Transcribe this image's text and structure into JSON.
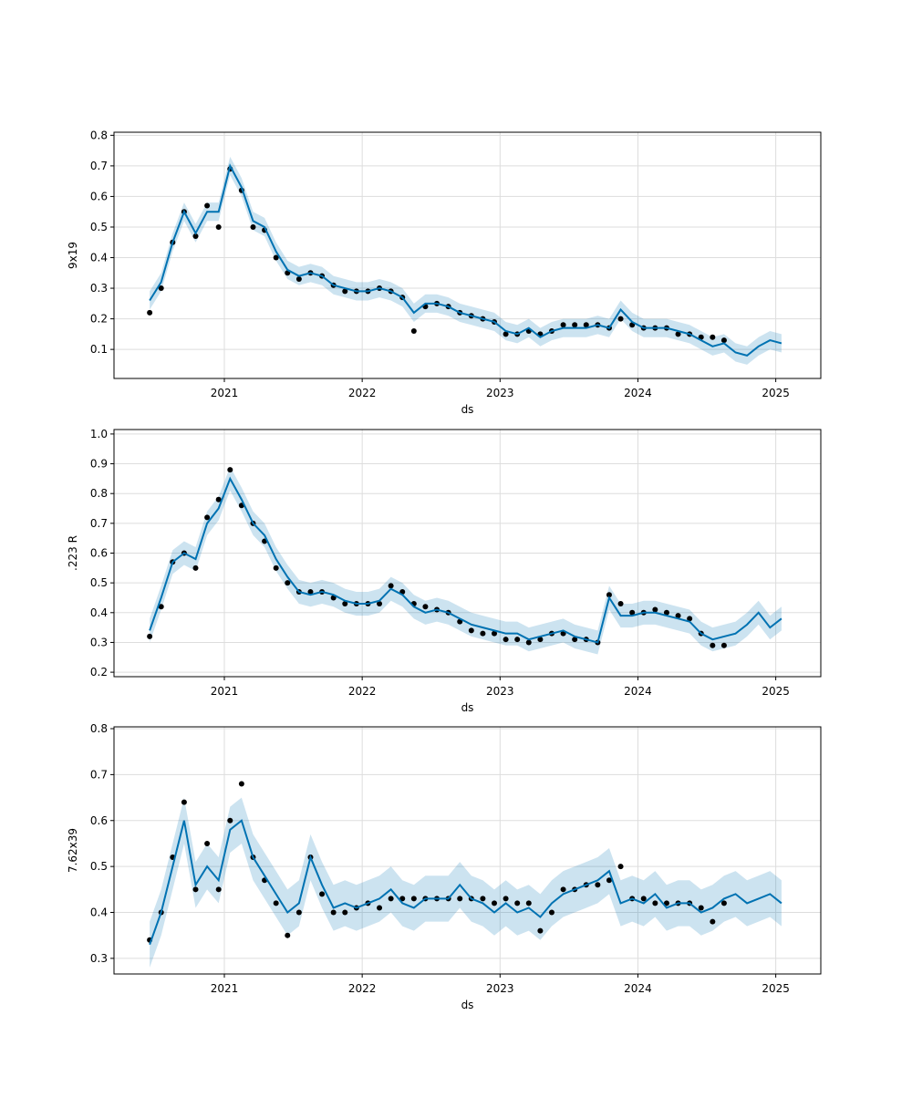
{
  "colors": {
    "forecast_line": "#0072B2",
    "interval_fill": "#0072B2",
    "observed_points": "#000000",
    "grid": "#dddddd"
  },
  "chart_data": [
    {
      "type": "line",
      "ylabel": "9x19",
      "xlabel": "ds",
      "xticks": [
        "2021",
        "2022",
        "2023",
        "2024",
        "2025"
      ],
      "yticks": [
        "0.1",
        "0.2",
        "0.3",
        "0.4",
        "0.5",
        "0.6",
        "0.7",
        "0.8"
      ],
      "xlim": [
        "2020-03-13",
        "2025-04-29"
      ],
      "ylim": [
        0.005,
        0.81
      ],
      "grid": true,
      "x": [
        "2020-06",
        "2020-07",
        "2020-08",
        "2020-09",
        "2020-10",
        "2020-11",
        "2020-12",
        "2021-01",
        "2021-02",
        "2021-03",
        "2021-04",
        "2021-05",
        "2021-06",
        "2021-07",
        "2021-08",
        "2021-09",
        "2021-10",
        "2021-11",
        "2021-12",
        "2022-01",
        "2022-02",
        "2022-03",
        "2022-04",
        "2022-05",
        "2022-06",
        "2022-07",
        "2022-08",
        "2022-09",
        "2022-10",
        "2022-11",
        "2022-12",
        "2023-01",
        "2023-02",
        "2023-03",
        "2023-04",
        "2023-05",
        "2023-06",
        "2023-07",
        "2023-08",
        "2023-09",
        "2023-10",
        "2023-11",
        "2023-12",
        "2024-01",
        "2024-02",
        "2024-03",
        "2024-04",
        "2024-05",
        "2024-06",
        "2024-07",
        "2024-08",
        "2024-09",
        "2024-10",
        "2024-11",
        "2024-12",
        "2025-01"
      ],
      "yhat": [
        0.26,
        0.32,
        0.45,
        0.55,
        0.48,
        0.55,
        0.55,
        0.7,
        0.63,
        0.52,
        0.5,
        0.42,
        0.36,
        0.34,
        0.35,
        0.34,
        0.31,
        0.3,
        0.29,
        0.29,
        0.3,
        0.29,
        0.27,
        0.22,
        0.25,
        0.25,
        0.24,
        0.22,
        0.21,
        0.2,
        0.19,
        0.16,
        0.15,
        0.17,
        0.14,
        0.16,
        0.17,
        0.17,
        0.17,
        0.18,
        0.17,
        0.23,
        0.19,
        0.17,
        0.17,
        0.17,
        0.16,
        0.15,
        0.13,
        0.11,
        0.12,
        0.09,
        0.08,
        0.11,
        0.13,
        0.12
      ],
      "interval_halfwidth": 0.03,
      "observed": [
        0.22,
        0.3,
        0.45,
        0.55,
        0.47,
        0.57,
        0.5,
        0.69,
        0.62,
        0.5,
        0.49,
        0.4,
        0.35,
        0.33,
        0.35,
        0.34,
        0.31,
        0.29,
        0.29,
        0.29,
        0.3,
        0.29,
        0.27,
        0.16,
        0.24,
        0.25,
        0.24,
        0.22,
        0.21,
        0.2,
        0.19,
        0.15,
        0.15,
        0.16,
        0.15,
        0.16,
        0.18,
        0.18,
        0.18,
        0.18,
        0.17,
        0.2,
        0.18,
        0.17,
        0.17,
        0.17,
        0.15,
        0.15,
        0.14,
        0.14,
        0.13
      ]
    },
    {
      "type": "line",
      "ylabel": ".223 R",
      "xlabel": "ds",
      "xticks": [
        "2021",
        "2022",
        "2023",
        "2024",
        "2025"
      ],
      "yticks": [
        "0.2",
        "0.3",
        "0.4",
        "0.5",
        "0.6",
        "0.7",
        "0.8",
        "0.9",
        "1.0"
      ],
      "xlim": [
        "2020-03-13",
        "2025-04-29"
      ],
      "ylim": [
        0.185,
        1.015
      ],
      "grid": true,
      "x": [
        "2020-06",
        "2020-07",
        "2020-08",
        "2020-09",
        "2020-10",
        "2020-11",
        "2020-12",
        "2021-01",
        "2021-02",
        "2021-03",
        "2021-04",
        "2021-05",
        "2021-06",
        "2021-07",
        "2021-08",
        "2021-09",
        "2021-10",
        "2021-11",
        "2021-12",
        "2022-01",
        "2022-02",
        "2022-03",
        "2022-04",
        "2022-05",
        "2022-06",
        "2022-07",
        "2022-08",
        "2022-09",
        "2022-10",
        "2022-11",
        "2022-12",
        "2023-01",
        "2023-02",
        "2023-03",
        "2023-04",
        "2023-05",
        "2023-06",
        "2023-07",
        "2023-08",
        "2023-09",
        "2023-10",
        "2023-11",
        "2023-12",
        "2024-01",
        "2024-02",
        "2024-03",
        "2024-04",
        "2024-05",
        "2024-06",
        "2024-07",
        "2024-08",
        "2024-09",
        "2024-10",
        "2024-11",
        "2024-12",
        "2025-01"
      ],
      "yhat": [
        0.34,
        0.45,
        0.57,
        0.6,
        0.58,
        0.7,
        0.75,
        0.85,
        0.78,
        0.7,
        0.66,
        0.58,
        0.52,
        0.47,
        0.46,
        0.47,
        0.46,
        0.44,
        0.43,
        0.43,
        0.44,
        0.48,
        0.46,
        0.42,
        0.4,
        0.41,
        0.4,
        0.38,
        0.36,
        0.35,
        0.34,
        0.33,
        0.33,
        0.31,
        0.32,
        0.33,
        0.34,
        0.32,
        0.31,
        0.3,
        0.45,
        0.39,
        0.39,
        0.4,
        0.4,
        0.39,
        0.38,
        0.37,
        0.33,
        0.31,
        0.32,
        0.33,
        0.36,
        0.4,
        0.35,
        0.38
      ],
      "interval_halfwidth": 0.04,
      "observed": [
        0.32,
        0.42,
        0.57,
        0.6,
        0.55,
        0.72,
        0.78,
        0.88,
        0.76,
        0.7,
        0.64,
        0.55,
        0.5,
        0.47,
        0.47,
        0.47,
        0.45,
        0.43,
        0.43,
        0.43,
        0.43,
        0.49,
        0.47,
        0.43,
        0.42,
        0.41,
        0.4,
        0.37,
        0.34,
        0.33,
        0.33,
        0.31,
        0.31,
        0.3,
        0.31,
        0.33,
        0.33,
        0.31,
        0.31,
        0.3,
        0.46,
        0.43,
        0.4,
        0.4,
        0.41,
        0.4,
        0.39,
        0.38,
        0.33,
        0.29,
        0.29
      ]
    },
    {
      "type": "line",
      "ylabel": "7.62x39",
      "xlabel": "ds",
      "xticks": [
        "2021",
        "2022",
        "2023",
        "2024",
        "2025"
      ],
      "yticks": [
        "0.3",
        "0.4",
        "0.5",
        "0.6",
        "0.7",
        "0.8"
      ],
      "xlim": [
        "2020-03-13",
        "2025-04-29"
      ],
      "ylim": [
        0.266,
        0.804
      ],
      "grid": true,
      "x": [
        "2020-06",
        "2020-07",
        "2020-08",
        "2020-09",
        "2020-10",
        "2020-11",
        "2020-12",
        "2021-01",
        "2021-02",
        "2021-03",
        "2021-04",
        "2021-05",
        "2021-06",
        "2021-07",
        "2021-08",
        "2021-09",
        "2021-10",
        "2021-11",
        "2021-12",
        "2022-01",
        "2022-02",
        "2022-03",
        "2022-04",
        "2022-05",
        "2022-06",
        "2022-07",
        "2022-08",
        "2022-09",
        "2022-10",
        "2022-11",
        "2022-12",
        "2023-01",
        "2023-02",
        "2023-03",
        "2023-04",
        "2023-05",
        "2023-06",
        "2023-07",
        "2023-08",
        "2023-09",
        "2023-10",
        "2023-11",
        "2023-12",
        "2024-01",
        "2024-02",
        "2024-03",
        "2024-04",
        "2024-05",
        "2024-06",
        "2024-07",
        "2024-08",
        "2024-09",
        "2024-10",
        "2024-11",
        "2024-12",
        "2025-01"
      ],
      "yhat": [
        0.33,
        0.4,
        0.5,
        0.6,
        0.46,
        0.5,
        0.47,
        0.58,
        0.6,
        0.52,
        0.48,
        0.44,
        0.4,
        0.42,
        0.52,
        0.46,
        0.41,
        0.42,
        0.41,
        0.42,
        0.43,
        0.45,
        0.42,
        0.41,
        0.43,
        0.43,
        0.43,
        0.46,
        0.43,
        0.42,
        0.4,
        0.42,
        0.4,
        0.41,
        0.39,
        0.42,
        0.44,
        0.45,
        0.46,
        0.47,
        0.49,
        0.42,
        0.43,
        0.42,
        0.44,
        0.41,
        0.42,
        0.42,
        0.4,
        0.41,
        0.43,
        0.44,
        0.42,
        0.43,
        0.44,
        0.42
      ],
      "interval_halfwidth": 0.05,
      "observed": [
        0.34,
        0.4,
        0.52,
        0.64,
        0.45,
        0.55,
        0.45,
        0.6,
        0.68,
        0.52,
        0.47,
        0.42,
        0.35,
        0.4,
        0.52,
        0.44,
        0.4,
        0.4,
        0.41,
        0.42,
        0.41,
        0.43,
        0.43,
        0.43,
        0.43,
        0.43,
        0.43,
        0.43,
        0.43,
        0.43,
        0.42,
        0.43,
        0.42,
        0.42,
        0.36,
        0.4,
        0.45,
        0.45,
        0.46,
        0.46,
        0.47,
        0.5,
        0.43,
        0.43,
        0.42,
        0.42,
        0.42,
        0.42,
        0.41,
        0.38,
        0.42
      ]
    }
  ]
}
